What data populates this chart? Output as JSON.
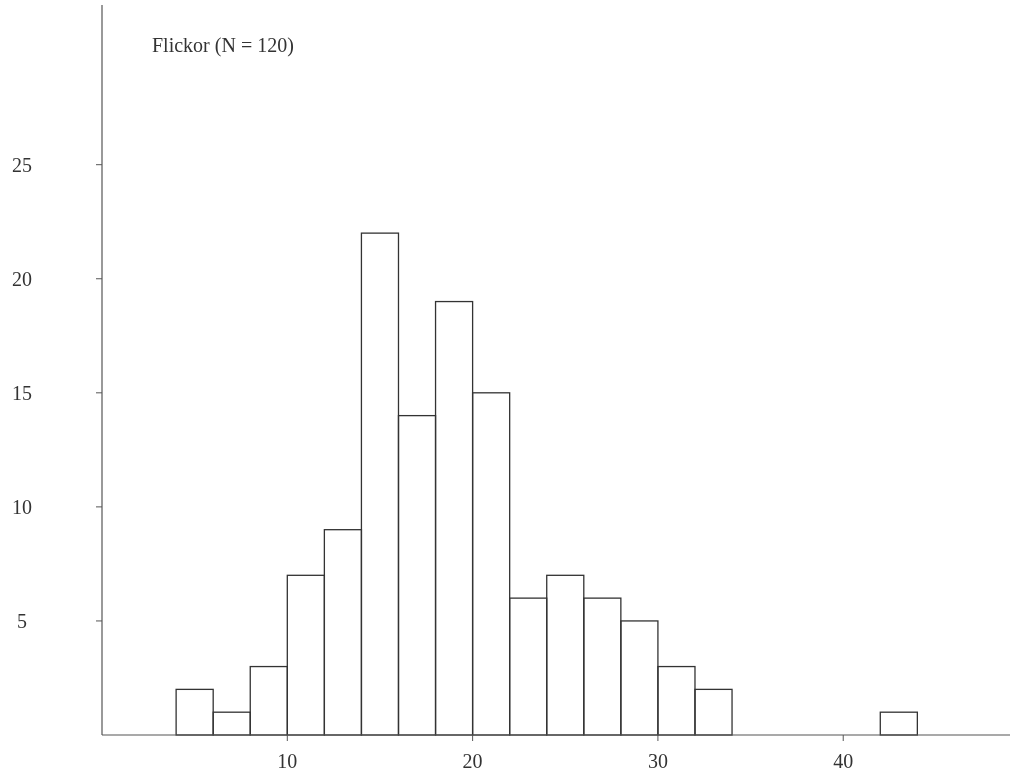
{
  "chart_data": {
    "type": "histogram",
    "title": "Flickor (N = 120)",
    "bins": [
      4,
      6,
      8,
      10,
      12,
      14,
      16,
      18,
      20,
      22,
      24,
      26,
      28,
      30,
      32,
      34,
      36,
      38,
      40,
      42,
      44
    ],
    "values": [
      2,
      1,
      3,
      7,
      9,
      22,
      14,
      19,
      15,
      6,
      7,
      6,
      5,
      3,
      2,
      0,
      0,
      0,
      0,
      1
    ],
    "color": "#333333",
    "xlim": [
      0,
      49
    ],
    "xticks": [
      10,
      20,
      30,
      40
    ],
    "ylim": [
      0,
      32
    ],
    "yticks": [
      5,
      10,
      15,
      20,
      25
    ],
    "grid": false
  }
}
